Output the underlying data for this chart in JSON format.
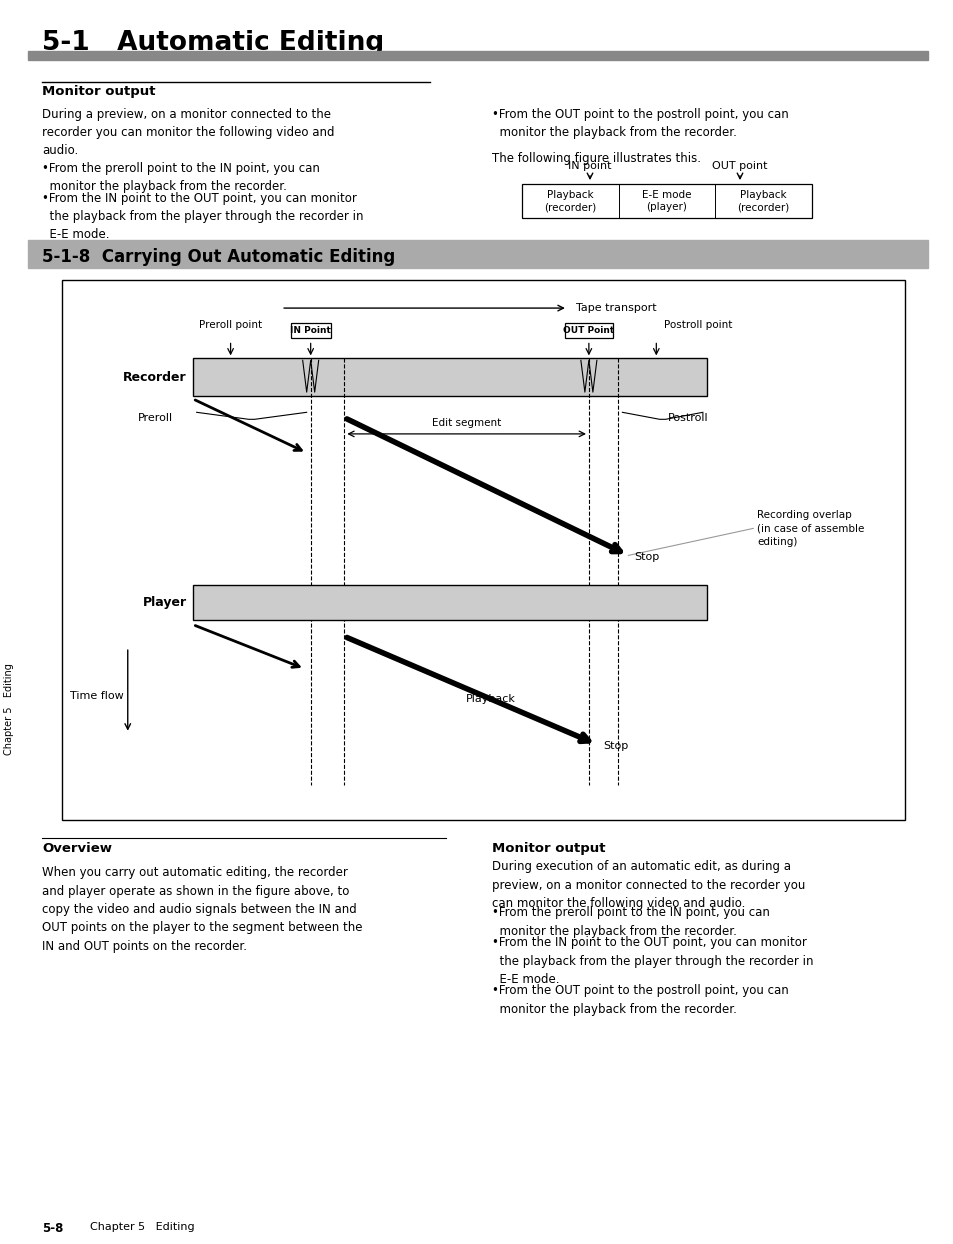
{
  "title": "5-1   Automatic Editing",
  "title_bar_color": "#888888",
  "section2_title": "5-1-8  Carrying Out Automatic Editing",
  "page_bg": "#ffffff",
  "sidebar_text": "Chapter 5   Editing",
  "footer_text": "5-8",
  "footer_text2": "Chapter 5   Editing",
  "monitor_output_title": "Monitor output",
  "monitor_output_body": "During a preview, on a monitor connected to the\nrecorder you can monitor the following video and\naudio.",
  "monitor_bullet1": "•From the preroll point to the IN point, you can\n  monitor the playback from the recorder.",
  "monitor_bullet2": "•From the IN point to the OUT point, you can monitor\n  the playback from the player through the recorder in\n  E-E mode.",
  "monitor_right1": "•From the OUT point to the postroll point, you can\n  monitor the playback from the recorder.",
  "figure_caption": "The following figure illustrates this.",
  "table_labels": [
    "Playback\n(recorder)",
    "E-E mode\n(player)",
    "Playback\n(recorder)"
  ],
  "in_point_label": "IN point",
  "out_point_label": "OUT point",
  "overview_title": "Overview",
  "overview_body": "When you carry out automatic editing, the recorder\nand player operate as shown in the figure above, to\ncopy the video and audio signals between the IN and\nOUT points on the player to the segment between the\nIN and OUT points on the recorder.",
  "monitor2_title": "Monitor output",
  "monitor2_body": "During execution of an automatic edit, as during a\npreview, on a monitor connected to the recorder you\ncan monitor the following video and audio.",
  "monitor2_bullet1": "•From the preroll point to the IN point, you can\n  monitor the playback from the recorder.",
  "monitor2_bullet2": "•From the IN point to the OUT point, you can monitor\n  the playback from the player through the recorder in\n  E-E mode.",
  "monitor2_bullet3": "•From the OUT point to the postroll point, you can\n  monitor the playback from the recorder.",
  "diagram_tape_label": "Tape transport",
  "diagram_preroll_label": "Preroll point",
  "diagram_in_label": "IN Point",
  "diagram_out_label": "OUT Point",
  "diagram_postroll_label": "Postroll point",
  "diagram_recorder_label": "Recorder",
  "diagram_preroll_text": "Preroll",
  "diagram_postroll_text": "Postroll",
  "diagram_edit_seg": "Edit segment",
  "diagram_stop1": "Stop",
  "diagram_player_label": "Player",
  "diagram_time_flow": "Time flow",
  "diagram_playback": "Playback",
  "diagram_stop2": "Stop",
  "diagram_recording_overlap": "Recording overlap\n(in case of assemble\nediting)",
  "recorder_bar_color": "#cccccc",
  "player_bar_color": "#cccccc"
}
